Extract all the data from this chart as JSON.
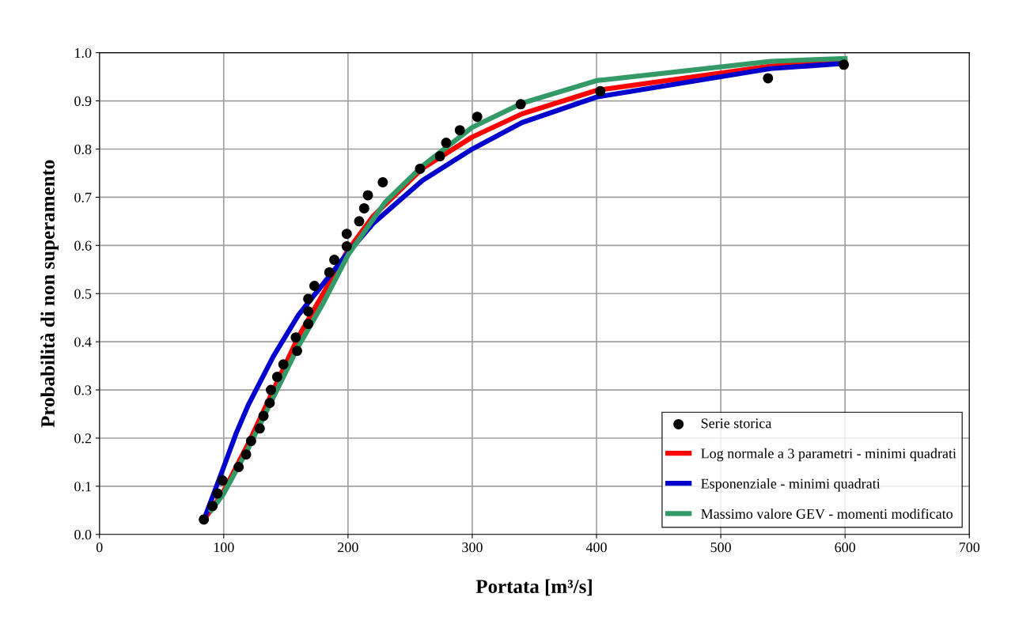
{
  "chart_data": {
    "type": "line",
    "xlabel": "Portata [m³/s]",
    "ylabel": "Probabilità di non superamento",
    "xlim": [
      0,
      700
    ],
    "xticks": [
      0,
      100,
      200,
      300,
      400,
      500,
      600,
      700
    ],
    "ylim": [
      0,
      1
    ],
    "yticks": [
      {
        "value": 0,
        "label": "0.0"
      },
      {
        "value": 0.1,
        "label": "0.1"
      },
      {
        "value": 0.2,
        "label": "0.2"
      },
      {
        "value": 0.3,
        "label": "0.3"
      },
      {
        "value": 0.4,
        "label": "0.4"
      },
      {
        "value": 0.5,
        "label": "0.5"
      },
      {
        "value": 0.6,
        "label": "0.6"
      },
      {
        "value": 0.7,
        "label": "0.7"
      },
      {
        "value": 0.8,
        "label": "0.8"
      },
      {
        "value": 0.9,
        "label": "0.9"
      },
      {
        "value": 1,
        "label": "1.0"
      }
    ],
    "grid": true,
    "legend": "bottom right",
    "series": [
      {
        "name": "Serie storica",
        "type": "scatter",
        "marker": "circle",
        "color": "#000000",
        "x": [
          84,
          91,
          95,
          99,
          112,
          118,
          122,
          129,
          132,
          137,
          138,
          143,
          148,
          158,
          159,
          168,
          168,
          168,
          173,
          185,
          189,
          199,
          199,
          209,
          213,
          216,
          228,
          258,
          274,
          279,
          290,
          304,
          339,
          403,
          538,
          599
        ],
        "values": [
          0.031,
          0.059,
          0.085,
          0.112,
          0.14,
          0.166,
          0.194,
          0.22,
          0.246,
          0.273,
          0.3,
          0.327,
          0.353,
          0.409,
          0.381,
          0.437,
          0.463,
          0.489,
          0.516,
          0.544,
          0.57,
          0.598,
          0.624,
          0.65,
          0.677,
          0.704,
          0.731,
          0.759,
          0.785,
          0.813,
          0.839,
          0.867,
          0.893,
          0.92,
          0.947,
          0.975
        ]
      },
      {
        "name": "Log normale a 3 parametri - minimi quadrati",
        "color": "#ff0000",
        "x": [
          84,
          100,
          120,
          140,
          160,
          180,
          200,
          220,
          260,
          300,
          340,
          400,
          540,
          600
        ],
        "values": [
          0.03,
          0.09,
          0.19,
          0.3,
          0.41,
          0.5,
          0.59,
          0.66,
          0.76,
          0.825,
          0.873,
          0.922,
          0.972,
          0.982
        ]
      },
      {
        "name": "Esponenziale - minimi quadrati",
        "color": "#0000cc",
        "x": [
          84,
          100,
          110,
          120,
          140,
          160,
          180,
          200,
          220,
          260,
          300,
          340,
          400,
          540,
          600
        ],
        "values": [
          0.03,
          0.14,
          0.21,
          0.27,
          0.37,
          0.455,
          0.52,
          0.585,
          0.645,
          0.735,
          0.8,
          0.855,
          0.908,
          0.967,
          0.978
        ]
      },
      {
        "name": "Massimo valore GEV - momenti modificato",
        "color": "#339966",
        "x": [
          90,
          100,
          120,
          140,
          160,
          180,
          200,
          230,
          260,
          300,
          340,
          400,
          540,
          600
        ],
        "values": [
          0.05,
          0.085,
          0.18,
          0.285,
          0.39,
          0.48,
          0.58,
          0.69,
          0.765,
          0.845,
          0.895,
          0.942,
          0.982,
          0.988
        ]
      }
    ]
  }
}
